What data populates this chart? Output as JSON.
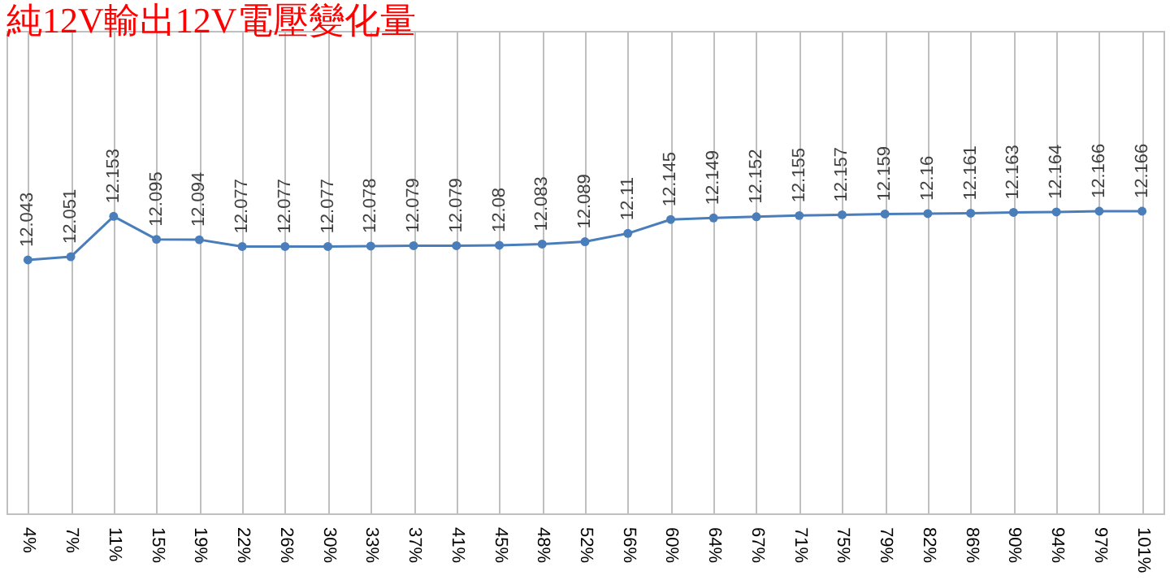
{
  "chart_data": {
    "type": "line",
    "title": "純12V輸出12V電壓變化量",
    "categories": [
      "4%",
      "7%",
      "11%",
      "15%",
      "19%",
      "22%",
      "26%",
      "30%",
      "33%",
      "37%",
      "41%",
      "45%",
      "48%",
      "52%",
      "56%",
      "60%",
      "64%",
      "67%",
      "71%",
      "75%",
      "79%",
      "82%",
      "86%",
      "90%",
      "94%",
      "97%",
      "101%"
    ],
    "series": [
      {
        "color": "#4a7ebb",
        "values": [
          12.043,
          12.051,
          12.153,
          12.095,
          12.094,
          12.077,
          12.077,
          12.077,
          12.078,
          12.079,
          12.079,
          12.08,
          12.083,
          12.089,
          12.11,
          12.145,
          12.149,
          12.152,
          12.155,
          12.157,
          12.159,
          12.16,
          12.161,
          12.163,
          12.164,
          12.166,
          12.166
        ]
      }
    ],
    "data_labels": true,
    "marker": "circle",
    "line_style": "solid",
    "grid": "x",
    "legend": false,
    "tick_labels": "x"
  }
}
